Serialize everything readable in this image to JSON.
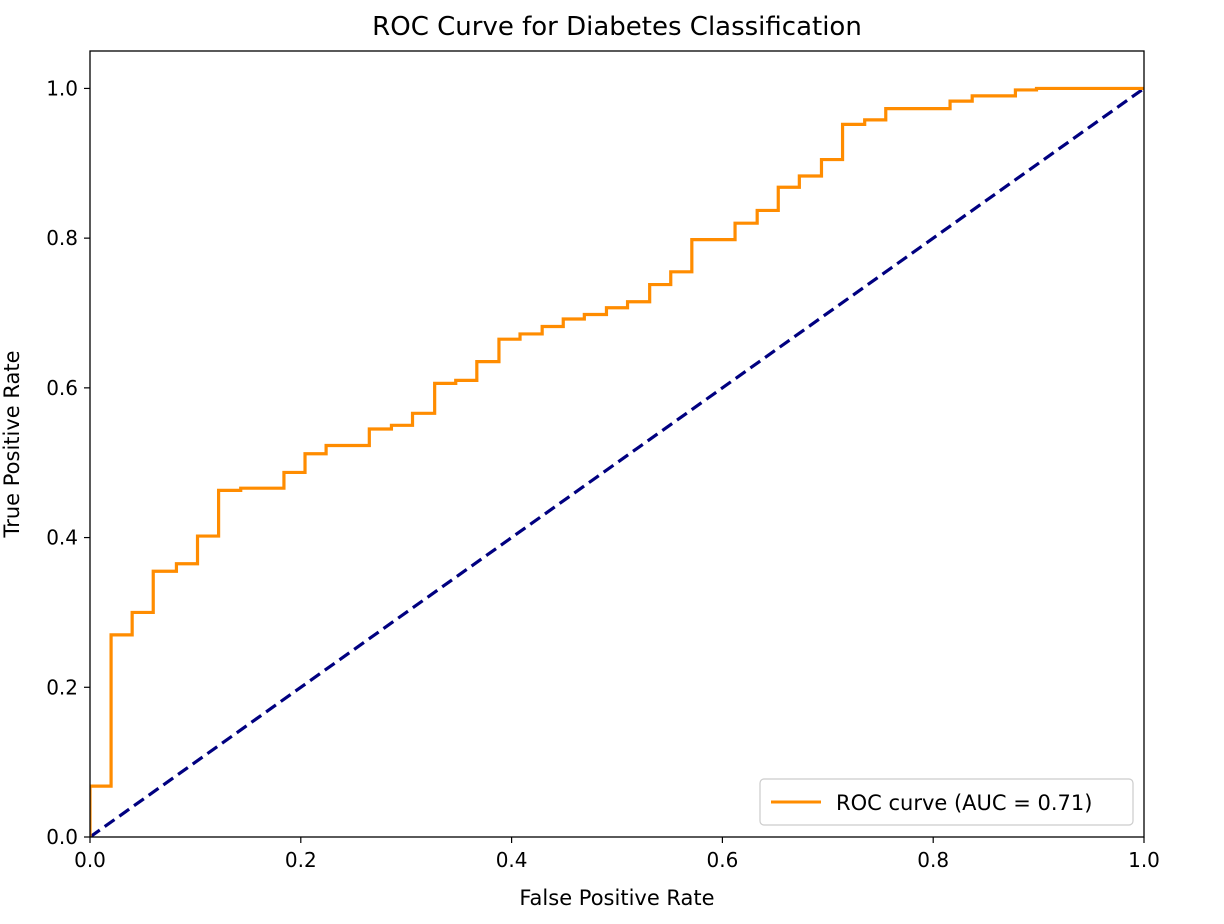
{
  "chart_data": {
    "type": "line",
    "title": "ROC Curve for Diabetes Classification",
    "xlabel": "False Positive Rate",
    "ylabel": "True Positive Rate",
    "xlim": [
      0.0,
      1.0
    ],
    "ylim": [
      0.0,
      1.05
    ],
    "grid": false,
    "legend_position": "lower right",
    "x_ticks": [
      "0.0",
      "0.2",
      "0.4",
      "0.6",
      "0.8",
      "1.0"
    ],
    "y_ticks": [
      "0.0",
      "0.2",
      "0.4",
      "0.6",
      "0.8",
      "1.0"
    ],
    "series": [
      {
        "name": "ROC curve (AUC = 0.71)",
        "color": "#ff8c00",
        "style": "solid",
        "step": true,
        "x": [
          0.0,
          0.0,
          0.02,
          0.02,
          0.04,
          0.04,
          0.06,
          0.06,
          0.082,
          0.082,
          0.102,
          0.102,
          0.122,
          0.122,
          0.143,
          0.143,
          0.184,
          0.184,
          0.204,
          0.204,
          0.224,
          0.224,
          0.265,
          0.265,
          0.286,
          0.286,
          0.306,
          0.306,
          0.327,
          0.327,
          0.347,
          0.347,
          0.367,
          0.367,
          0.388,
          0.388,
          0.408,
          0.408,
          0.429,
          0.429,
          0.449,
          0.449,
          0.469,
          0.469,
          0.49,
          0.49,
          0.51,
          0.51,
          0.531,
          0.531,
          0.551,
          0.551,
          0.571,
          0.571,
          0.612,
          0.612,
          0.633,
          0.633,
          0.653,
          0.653,
          0.673,
          0.673,
          0.694,
          0.694,
          0.714,
          0.714,
          0.735,
          0.735,
          0.755,
          0.755,
          0.816,
          0.816,
          0.837,
          0.837,
          0.878,
          0.878,
          0.898,
          0.898,
          1.0
        ],
        "y": [
          0.0,
          0.068,
          0.068,
          0.27,
          0.27,
          0.3,
          0.3,
          0.355,
          0.355,
          0.365,
          0.365,
          0.402,
          0.402,
          0.463,
          0.463,
          0.466,
          0.466,
          0.487,
          0.487,
          0.512,
          0.512,
          0.523,
          0.523,
          0.545,
          0.545,
          0.55,
          0.55,
          0.566,
          0.566,
          0.606,
          0.606,
          0.61,
          0.61,
          0.635,
          0.635,
          0.665,
          0.665,
          0.672,
          0.672,
          0.682,
          0.682,
          0.692,
          0.692,
          0.698,
          0.698,
          0.707,
          0.707,
          0.715,
          0.715,
          0.738,
          0.738,
          0.755,
          0.755,
          0.798,
          0.798,
          0.82,
          0.82,
          0.837,
          0.837,
          0.868,
          0.868,
          0.883,
          0.883,
          0.905,
          0.905,
          0.952,
          0.952,
          0.958,
          0.958,
          0.973,
          0.973,
          0.983,
          0.983,
          0.99,
          0.99,
          0.998,
          0.998,
          1.0,
          1.0
        ]
      },
      {
        "name": "",
        "color": "#000080",
        "style": "dashed",
        "x": [
          0.0,
          1.0
        ],
        "y": [
          0.0,
          1.0
        ]
      }
    ]
  }
}
